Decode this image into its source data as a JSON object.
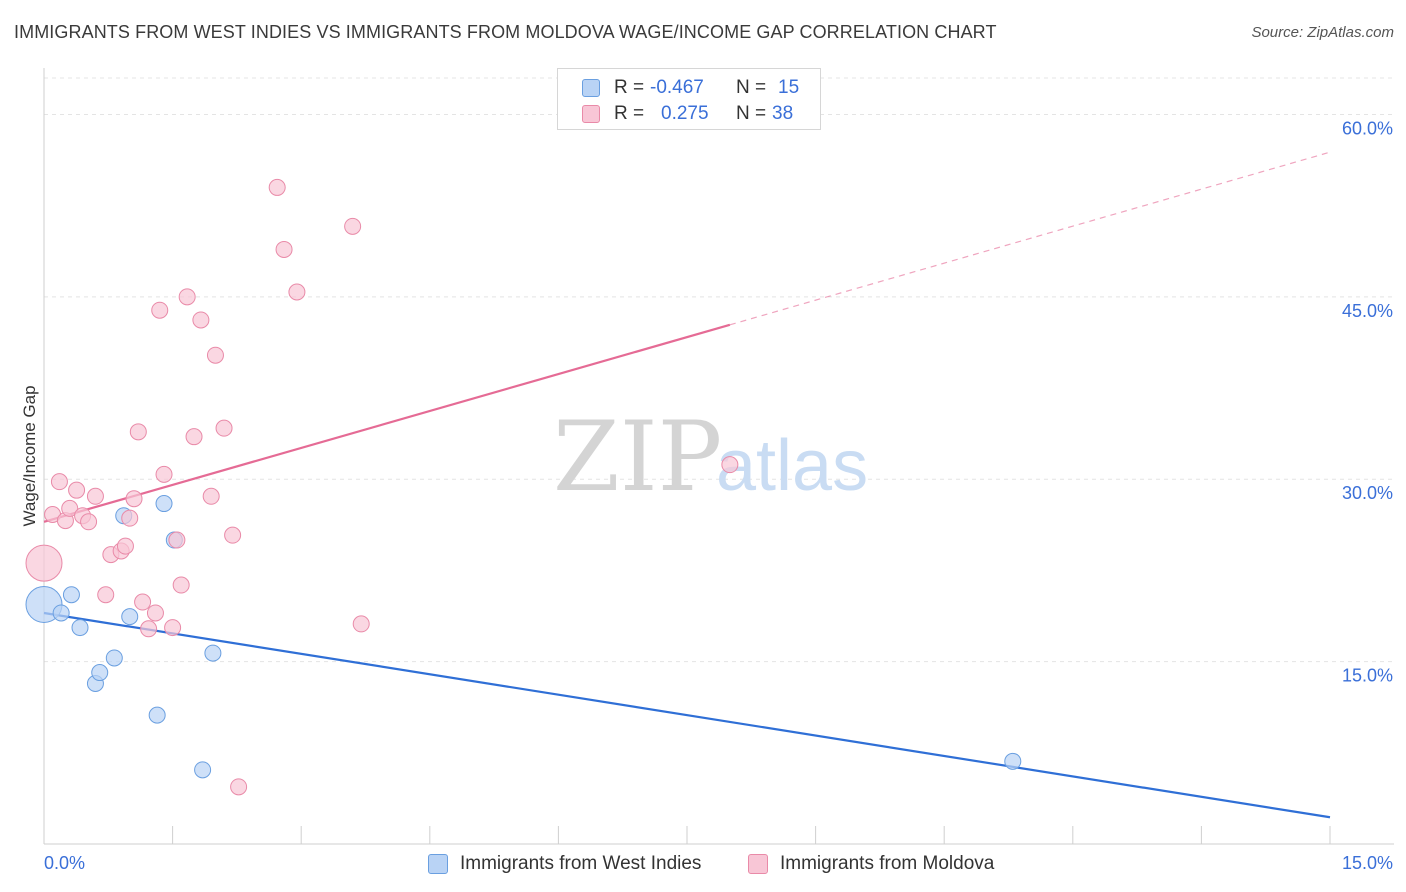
{
  "header": {
    "title": "IMMIGRANTS FROM WEST INDIES VS IMMIGRANTS FROM MOLDOVA WAGE/INCOME GAP CORRELATION CHART",
    "source": "Source: ZipAtlas.com"
  },
  "legend": {
    "rows": [
      {
        "r_label": "R =",
        "r_value": "-0.467",
        "n_label": "N =",
        "n_value": "15"
      },
      {
        "r_label": "R =",
        "r_value": "0.275",
        "n_label": "N =",
        "n_value": "38"
      }
    ]
  },
  "watermark": {
    "zip": "ZIP",
    "atlas": "atlas"
  },
  "colors": {
    "blue_fill": "#b9d3f5",
    "blue_stroke": "#6a9fe0",
    "blue_line": "#2f6fd6",
    "pink_fill": "#f8c6d6",
    "pink_stroke": "#e98aa8",
    "pink_line": "#e56b95",
    "tick_text": "#3a6fd8",
    "grid": "#e4e4e4"
  },
  "chart_data": {
    "type": "scatter",
    "title": "IMMIGRANTS FROM WEST INDIES VS IMMIGRANTS FROM MOLDOVA WAGE/INCOME GAP CORRELATION CHART",
    "xlabel": "",
    "ylabel": "Wage/Income Gap",
    "xlim": [
      0,
      15
    ],
    "ylim": [
      0,
      63
    ],
    "x_tick_labels": [
      "0.0%",
      "15.0%"
    ],
    "y_ticks": [
      15,
      30,
      45,
      60
    ],
    "y_tick_labels": [
      "15.0%",
      "30.0%",
      "45.0%",
      "60.0%"
    ],
    "series": [
      {
        "name": "Immigrants from West Indies",
        "color": "blue",
        "r": -0.467,
        "n": 15,
        "points": [
          {
            "x": 0.0,
            "y": 19.7,
            "big": true
          },
          {
            "x": 0.2,
            "y": 19.0
          },
          {
            "x": 0.32,
            "y": 20.5
          },
          {
            "x": 0.42,
            "y": 17.8
          },
          {
            "x": 0.6,
            "y": 13.2
          },
          {
            "x": 0.65,
            "y": 14.1
          },
          {
            "x": 0.82,
            "y": 15.3
          },
          {
            "x": 0.93,
            "y": 27.0
          },
          {
            "x": 1.0,
            "y": 18.7
          },
          {
            "x": 1.32,
            "y": 10.6
          },
          {
            "x": 1.4,
            "y": 28.0
          },
          {
            "x": 1.52,
            "y": 25.0
          },
          {
            "x": 1.85,
            "y": 6.1
          },
          {
            "x": 1.97,
            "y": 15.7
          },
          {
            "x": 11.3,
            "y": 6.8
          }
        ],
        "trend": {
          "x0": 0.0,
          "y0": 19.0,
          "x1": 15.0,
          "y1": 2.2
        }
      },
      {
        "name": "Immigrants from Moldova",
        "color": "pink",
        "r": 0.275,
        "n": 38,
        "points": [
          {
            "x": 0.0,
            "y": 23.1,
            "big": true
          },
          {
            "x": 0.1,
            "y": 27.1
          },
          {
            "x": 0.18,
            "y": 29.8
          },
          {
            "x": 0.25,
            "y": 26.6
          },
          {
            "x": 0.3,
            "y": 27.6
          },
          {
            "x": 0.38,
            "y": 29.1
          },
          {
            "x": 0.45,
            "y": 27.0
          },
          {
            "x": 0.52,
            "y": 26.5
          },
          {
            "x": 0.6,
            "y": 28.6
          },
          {
            "x": 0.72,
            "y": 20.5
          },
          {
            "x": 0.78,
            "y": 23.8
          },
          {
            "x": 0.9,
            "y": 24.1
          },
          {
            "x": 0.95,
            "y": 24.5
          },
          {
            "x": 1.0,
            "y": 26.8
          },
          {
            "x": 1.05,
            "y": 28.4
          },
          {
            "x": 1.1,
            "y": 33.9
          },
          {
            "x": 1.15,
            "y": 19.9
          },
          {
            "x": 1.22,
            "y": 17.7
          },
          {
            "x": 1.3,
            "y": 19.0
          },
          {
            "x": 1.35,
            "y": 43.9
          },
          {
            "x": 1.4,
            "y": 30.4
          },
          {
            "x": 1.5,
            "y": 17.8
          },
          {
            "x": 1.55,
            "y": 25.0
          },
          {
            "x": 1.6,
            "y": 21.3
          },
          {
            "x": 1.67,
            "y": 45.0
          },
          {
            "x": 1.75,
            "y": 33.5
          },
          {
            "x": 1.83,
            "y": 43.1
          },
          {
            "x": 1.95,
            "y": 28.6
          },
          {
            "x": 2.0,
            "y": 40.2
          },
          {
            "x": 2.1,
            "y": 34.2
          },
          {
            "x": 2.2,
            "y": 25.4
          },
          {
            "x": 2.27,
            "y": 4.7
          },
          {
            "x": 2.72,
            "y": 54.0
          },
          {
            "x": 2.8,
            "y": 48.9
          },
          {
            "x": 2.95,
            "y": 45.4
          },
          {
            "x": 3.6,
            "y": 50.8
          },
          {
            "x": 3.7,
            "y": 18.1
          },
          {
            "x": 8.0,
            "y": 31.2
          }
        ],
        "trend": {
          "x0": 0.0,
          "y0": 26.5,
          "x1": 8.0,
          "y1": 42.7
        },
        "trend_extension": {
          "x0": 8.0,
          "y0": 42.7,
          "x1": 15.0,
          "y1": 56.9
        }
      }
    ]
  },
  "bottom_legend": {
    "items": [
      {
        "label": "Immigrants from West Indies"
      },
      {
        "label": "Immigrants from Moldova"
      }
    ]
  }
}
